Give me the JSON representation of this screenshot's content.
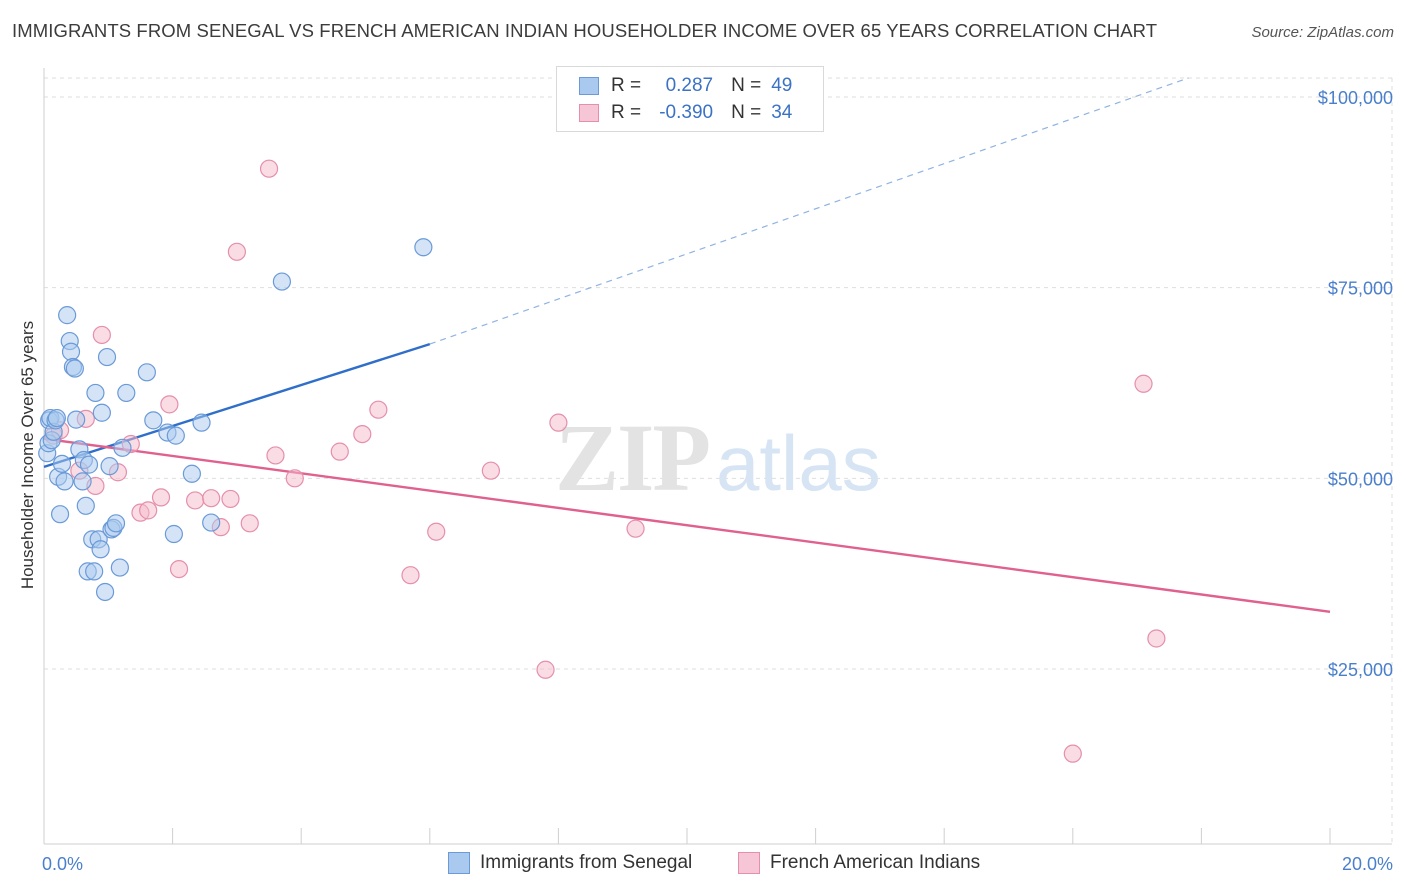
{
  "title": "IMMIGRANTS FROM SENEGAL VS FRENCH AMERICAN INDIAN HOUSEHOLDER INCOME OVER 65 YEARS CORRELATION CHART",
  "source": "Source: ZipAtlas.com",
  "watermark": {
    "zip": "ZIP",
    "atlas": "atlas"
  },
  "legend": {
    "r_label": "R =",
    "n_label": "N =",
    "series": [
      {
        "r": "0.287",
        "n": "49"
      },
      {
        "r": "-0.390",
        "n": "34"
      }
    ]
  },
  "colors": {
    "blue_fill": "#aac9ee",
    "blue_stroke": "#6a9ad8",
    "blue_line": "#2f6fc9",
    "pink_fill": "#f6b9cc",
    "pink_stroke": "#e58fab",
    "pink_line": "#e0608e"
  },
  "chart_data": {
    "type": "scatter",
    "title": "IMMIGRANTS FROM SENEGAL VS FRENCH AMERICAN INDIAN HOUSEHOLDER INCOME OVER 65 YEARS CORRELATION CHART",
    "xlabel": "",
    "ylabel": "Householder Income Over 65 years",
    "xlim": [
      0,
      20
    ],
    "ylim": [
      0,
      102500
    ],
    "x_tick_labels": [
      "0.0%",
      "20.0%"
    ],
    "y_ticks": [
      {
        "value": 25000,
        "label": "$25,000"
      },
      {
        "value": 50000,
        "label": "$50,000"
      },
      {
        "value": 75000,
        "label": "$75,000"
      },
      {
        "value": 100000,
        "label": "$100,000"
      }
    ],
    "series": [
      {
        "name": "Immigrants from Senegal",
        "color": "blue",
        "points": [
          [
            0.05,
            53300
          ],
          [
            0.07,
            54600
          ],
          [
            0.08,
            57600
          ],
          [
            0.1,
            57900
          ],
          [
            0.12,
            55000
          ],
          [
            0.15,
            56100
          ],
          [
            0.18,
            57600
          ],
          [
            0.2,
            57900
          ],
          [
            0.22,
            50200
          ],
          [
            0.25,
            45300
          ],
          [
            0.28,
            51900
          ],
          [
            0.32,
            49600
          ],
          [
            0.36,
            71400
          ],
          [
            0.4,
            68000
          ],
          [
            0.42,
            66600
          ],
          [
            0.45,
            64600
          ],
          [
            0.48,
            64400
          ],
          [
            0.5,
            57700
          ],
          [
            0.55,
            53800
          ],
          [
            0.6,
            49600
          ],
          [
            0.62,
            52400
          ],
          [
            0.65,
            46400
          ],
          [
            0.68,
            37800
          ],
          [
            0.7,
            51800
          ],
          [
            0.75,
            42000
          ],
          [
            0.78,
            37800
          ],
          [
            0.8,
            61200
          ],
          [
            0.85,
            42000
          ],
          [
            0.88,
            40700
          ],
          [
            0.9,
            58600
          ],
          [
            0.95,
            35100
          ],
          [
            0.98,
            65900
          ],
          [
            1.02,
            51600
          ],
          [
            1.05,
            43300
          ],
          [
            1.08,
            43500
          ],
          [
            1.12,
            44100
          ],
          [
            1.18,
            38300
          ],
          [
            1.22,
            54000
          ],
          [
            1.28,
            61200
          ],
          [
            1.6,
            63900
          ],
          [
            1.7,
            57600
          ],
          [
            1.92,
            56000
          ],
          [
            2.05,
            55600
          ],
          [
            2.02,
            42700
          ],
          [
            2.3,
            50600
          ],
          [
            2.45,
            57300
          ],
          [
            2.6,
            44200
          ],
          [
            3.7,
            75800
          ],
          [
            5.9,
            80300
          ]
        ]
      },
      {
        "name": "French American Indians",
        "color": "pink",
        "points": [
          [
            0.15,
            55600
          ],
          [
            0.25,
            56300
          ],
          [
            0.55,
            51000
          ],
          [
            0.65,
            57800
          ],
          [
            0.8,
            49000
          ],
          [
            0.9,
            68800
          ],
          [
            1.15,
            50800
          ],
          [
            1.35,
            54500
          ],
          [
            1.5,
            45500
          ],
          [
            1.62,
            45800
          ],
          [
            1.82,
            47500
          ],
          [
            1.95,
            59700
          ],
          [
            2.1,
            38100
          ],
          [
            2.35,
            47100
          ],
          [
            2.6,
            47400
          ],
          [
            2.75,
            43600
          ],
          [
            2.9,
            47300
          ],
          [
            3.0,
            79700
          ],
          [
            3.2,
            44100
          ],
          [
            3.5,
            90600
          ],
          [
            3.6,
            53000
          ],
          [
            3.9,
            50000
          ],
          [
            4.6,
            53500
          ],
          [
            4.95,
            55800
          ],
          [
            5.2,
            59000
          ],
          [
            5.7,
            37300
          ],
          [
            6.1,
            43000
          ],
          [
            6.95,
            51000
          ],
          [
            7.8,
            24900
          ],
          [
            8.0,
            57300
          ],
          [
            9.2,
            43400
          ],
          [
            16.0,
            13900
          ],
          [
            17.1,
            62400
          ],
          [
            17.3,
            29000
          ]
        ]
      }
    ],
    "trend_lines": [
      {
        "series": "Immigrants from Senegal",
        "x": [
          0,
          6.0
        ],
        "y": [
          51500,
          67600
        ],
        "extended_dashed_to": [
          17.8,
          102500
        ]
      },
      {
        "series": "French American Indians",
        "x": [
          0,
          20
        ],
        "y": [
          55200,
          32500
        ]
      }
    ],
    "legend": [
      "Immigrants from Senegal",
      "French American Indians"
    ]
  }
}
